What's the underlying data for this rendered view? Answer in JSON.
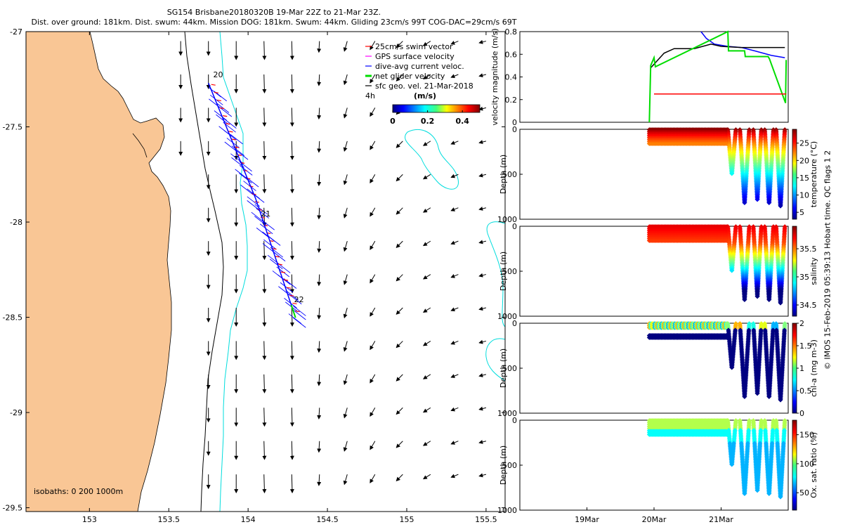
{
  "title": {
    "line1": "SG154 Brisbane20180320B 19-Mar 22Z to 21-Mar 23Z.",
    "line2": "Dist. over ground: 181km. Dist. swum: 44km. Mission DOG: 181km. Swum: 44km. Gliding 23cm/s 99T COG-DAC=29cm/s 69T"
  },
  "map": {
    "xlim": [
      152.6,
      155.62
    ],
    "ylim": [
      -29.52,
      -27.0
    ],
    "xticks": [
      153,
      153.5,
      154,
      154.5,
      155,
      155.5
    ],
    "xtick_labels": [
      "153",
      "153.5",
      "154",
      "154.5",
      "155",
      "155.5"
    ],
    "yticks": [
      -27,
      -27.5,
      -28,
      -28.5,
      -29,
      -29.5
    ],
    "ytick_labels": [
      "-27",
      "-27.5",
      "-28",
      "-28.5",
      "-29",
      "-29.5"
    ],
    "land_color": "#f9c695",
    "legend": [
      {
        "label": "25cm/s swim vector",
        "color": "#ff0000"
      },
      {
        "label": "GPS surface velocity",
        "color": "#ff00ff"
      },
      {
        "label": "dive-avg current veloc.",
        "color": "#0000ff"
      },
      {
        "label": "net glider velocity",
        "color": "#00dd00"
      },
      {
        "label": "sfc geo. vel. 21-Mar-2018",
        "color": "#000000"
      }
    ],
    "colorbar": {
      "title": "(m/s)",
      "ticks": [
        "0",
        "0.2",
        "0.4"
      ],
      "extra_label": "4h"
    },
    "day_labels": [
      {
        "text": "20",
        "lon": 153.78,
        "lat": -27.24
      },
      {
        "text": "21",
        "lon": 154.08,
        "lat": -27.97
      },
      {
        "text": "22",
        "lon": 154.29,
        "lat": -28.42
      }
    ],
    "isobath_label": "isobaths: 0   200  1000m",
    "track_start": [
      153.75,
      -27.27
    ],
    "track_end": [
      154.29,
      -28.48
    ]
  },
  "chart_data": [
    {
      "type": "line",
      "title": "velocity magnitude",
      "ylabel": "velocity magnitude (m/s)",
      "ylim": [
        0,
        0.8
      ],
      "yticks": [
        "0",
        "0.2",
        "0.4",
        "0.6",
        "0.8"
      ],
      "xlim_days": [
        18.0,
        22.0
      ],
      "series": [
        {
          "name": "dive-avg current",
          "color": "#0000ff",
          "x": [
            20.7,
            20.78,
            20.9,
            21.1,
            21.3,
            21.5,
            21.75,
            21.95
          ],
          "y": [
            0.8,
            0.74,
            0.69,
            0.67,
            0.66,
            0.63,
            0.59,
            0.57
          ]
        },
        {
          "name": "sfc geo. vel.",
          "color": "#000000",
          "x": [
            19.95,
            20.15,
            20.3,
            20.6,
            20.85,
            21.0,
            21.3,
            21.6,
            21.95
          ],
          "y": [
            0.48,
            0.61,
            0.65,
            0.65,
            0.69,
            0.67,
            0.66,
            0.66,
            0.66
          ]
        },
        {
          "name": "net glider velocity",
          "color": "#00dd00",
          "x": [
            19.93,
            19.95,
            20.0,
            20.02,
            21.1,
            21.11,
            21.35,
            21.36,
            21.7,
            21.72,
            21.96,
            21.97
          ],
          "y": [
            0.0,
            0.5,
            0.57,
            0.49,
            0.8,
            0.63,
            0.63,
            0.58,
            0.58,
            0.56,
            0.17,
            0.55
          ]
        },
        {
          "name": "swim vector",
          "color": "#ff0000",
          "x": [
            20.0,
            21.97
          ],
          "y": [
            0.25,
            0.25
          ]
        }
      ]
    },
    {
      "type": "scatter",
      "title": "temperature",
      "ylabel": "Depth (m)",
      "colorbar_label": "temperature (°C)",
      "colorbar_ticks": [
        "5",
        "10",
        "15",
        "20",
        "25"
      ],
      "clim": [
        3,
        29
      ],
      "ylim": [
        0,
        1000
      ],
      "yticks": [
        "0",
        "500",
        "1000"
      ],
      "profiles": [
        {
          "start": 19.93,
          "end": 21.1,
          "max_depth": 160
        },
        {
          "start": 21.1,
          "end": 21.22,
          "max_depth": 500
        },
        {
          "start": 21.28,
          "end": 21.42,
          "max_depth": 820
        },
        {
          "start": 21.48,
          "end": 21.6,
          "max_depth": 780
        },
        {
          "start": 21.65,
          "end": 21.78,
          "max_depth": 830
        },
        {
          "start": 21.82,
          "end": 21.95,
          "max_depth": 860
        }
      ]
    },
    {
      "type": "scatter",
      "title": "salinity",
      "ylabel": "Depth (m)",
      "colorbar_label": "salinity",
      "colorbar_ticks": [
        "34.5",
        "35",
        "35.5"
      ],
      "clim": [
        34.3,
        35.9
      ],
      "ylim": [
        0,
        1000
      ],
      "yticks": [
        "0",
        "500",
        "1000"
      ]
    },
    {
      "type": "scatter",
      "title": "chlorophyll",
      "ylabel": "Depth (m)",
      "colorbar_label": "chl-a (mg m-3)",
      "colorbar_ticks": [
        "0",
        "0.5",
        "1",
        "1.5",
        "2"
      ],
      "clim": [
        0,
        2
      ],
      "ylim": [
        0,
        1000
      ],
      "yticks": [
        "0",
        "500",
        "1000"
      ]
    },
    {
      "type": "scatter",
      "title": "oxygen",
      "ylabel": "Depth (m)",
      "colorbar_label": "Ox. sat. ratio (%)",
      "colorbar_ticks": [
        "50",
        "100",
        "150"
      ],
      "clim": [
        20,
        175
      ],
      "ylim": [
        0,
        1000
      ],
      "yticks": [
        "0",
        "500",
        "1000"
      ],
      "xticks_days": [
        19,
        20,
        21
      ],
      "xtick_labels": [
        "19Mar",
        "20Mar",
        "21Mar"
      ]
    }
  ],
  "credit": "© IMOS 15-Feb-2019 05:39:13 Hobart time. QC flags 1  2"
}
